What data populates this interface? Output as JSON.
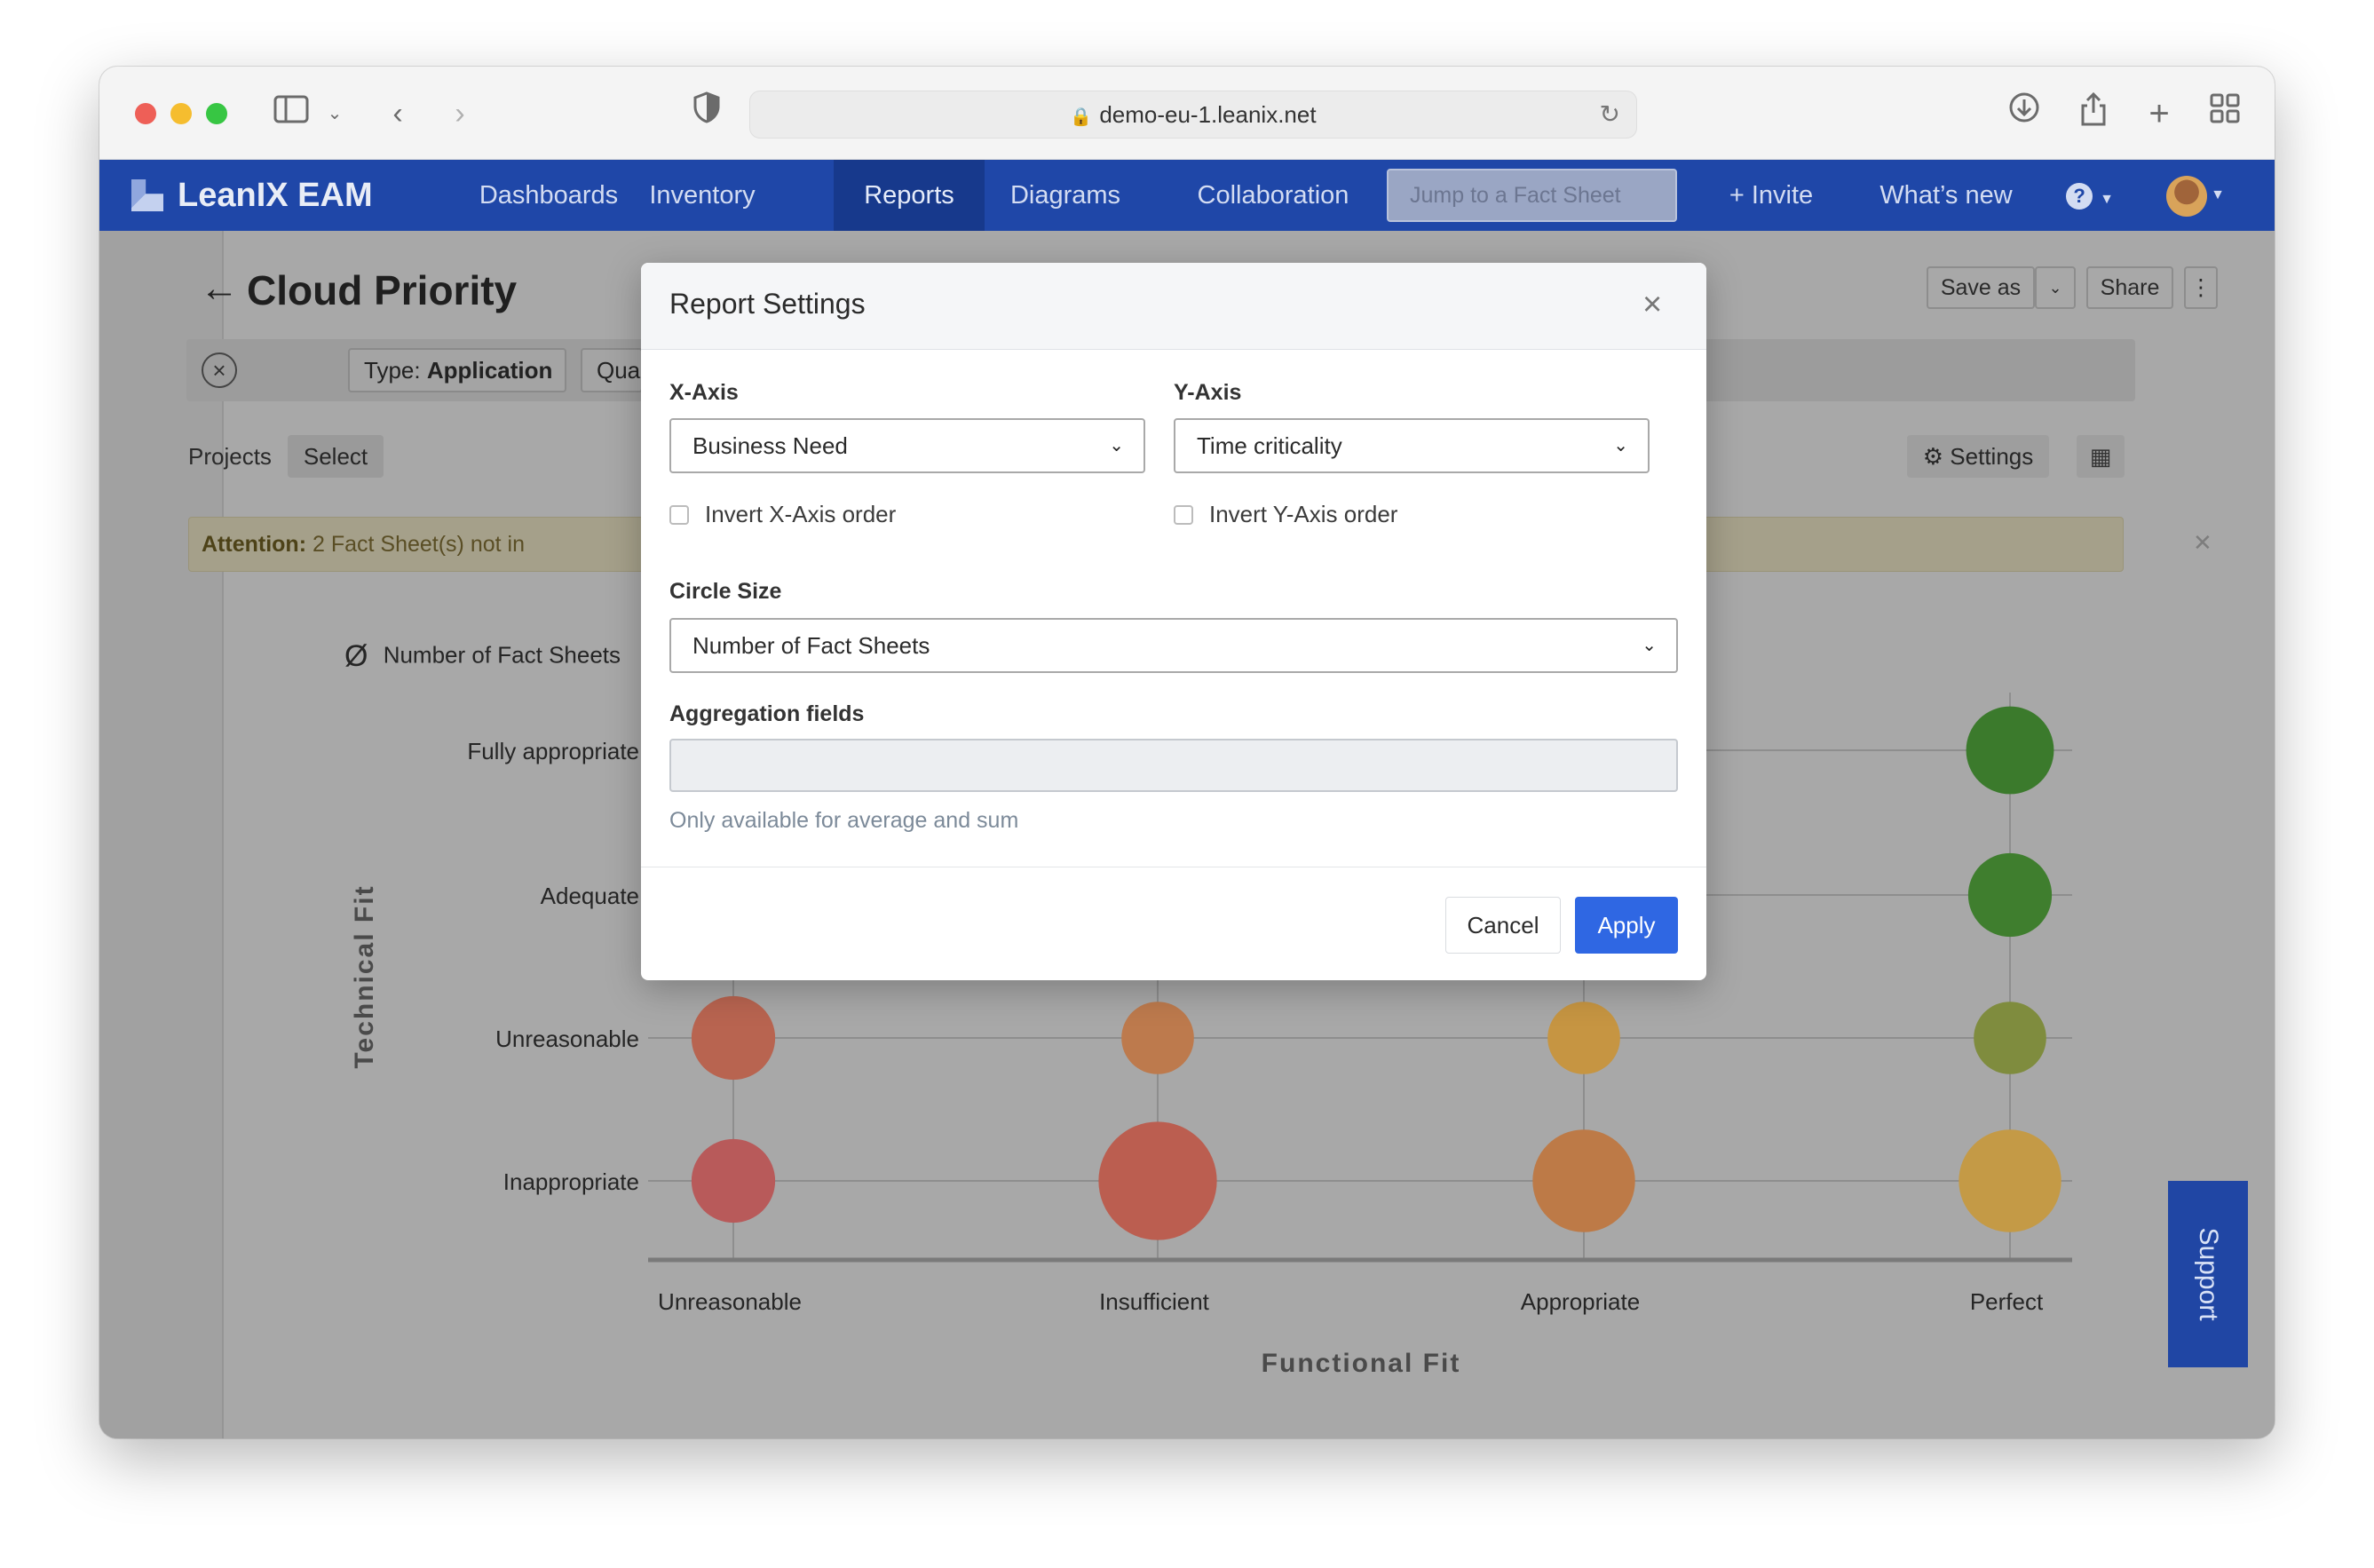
{
  "browser": {
    "url": "demo-eu-1.leanix.net",
    "icons": [
      "sidebar-toggle-icon",
      "chevron-down-icon",
      "back-icon",
      "forward-icon",
      "shield-icon",
      "lock-icon",
      "reload-icon",
      "download-icon",
      "share-icon",
      "new-tab-icon",
      "tab-overview-icon"
    ]
  },
  "nav": {
    "brand": "LeanIX EAM",
    "items": [
      "Dashboards",
      "Inventory",
      "Reports",
      "Diagrams",
      "Collaboration"
    ],
    "active": "Reports",
    "jump_placeholder": "Jump to a Fact Sheet",
    "invite": "+ Invite",
    "whats_new": "What’s new",
    "help": "?"
  },
  "page": {
    "title": "Cloud Priority",
    "filter_type_key": "Type:",
    "filter_type_value": "Application",
    "filter_chip_2": "Qua",
    "save_as": "Save as",
    "share": "Share",
    "more": "⋮",
    "projects_label": "Projects",
    "projects_select": "Select",
    "settings": "Settings",
    "attention_key": "Attention:",
    "attention_text": "2 Fact Sheet(s) not in",
    "legend_symbol": "Ø",
    "legend_label": "Number of Fact Sheets",
    "support": "Support"
  },
  "chart_data": {
    "type": "scatter",
    "xlabel": "Functional Fit",
    "ylabel": "Technical Fit",
    "x_categories": [
      "Unreasonable",
      "Insufficient",
      "Appropriate",
      "Perfect"
    ],
    "y_categories": [
      "Inappropriate",
      "Unreasonable",
      "Adequate",
      "Fully appropriate"
    ],
    "size_label": "Number of Fact Sheets",
    "points": [
      {
        "x": "Unreasonable",
        "y": "Inappropriate",
        "size": 2,
        "color": "#b85a5a"
      },
      {
        "x": "Insufficient",
        "y": "Inappropriate",
        "size": 4,
        "color": "#bb5e50"
      },
      {
        "x": "Appropriate",
        "y": "Inappropriate",
        "size": 3,
        "color": "#bd7a47"
      },
      {
        "x": "Perfect",
        "y": "Inappropriate",
        "size": 3,
        "color": "#c49a46"
      },
      {
        "x": "Unreasonable",
        "y": "Unreasonable",
        "size": 2,
        "color": "#b86450"
      },
      {
        "x": "Insufficient",
        "y": "Unreasonable",
        "size": 1.5,
        "color": "#bd7a4d"
      },
      {
        "x": "Appropriate",
        "y": "Unreasonable",
        "size": 1.5,
        "color": "#c69542"
      },
      {
        "x": "Perfect",
        "y": "Unreasonable",
        "size": 1.5,
        "color": "#7f8c3e"
      },
      {
        "x": "Perfect",
        "y": "Adequate",
        "size": 2,
        "color": "#3f7e2e"
      },
      {
        "x": "Perfect",
        "y": "Fully appropriate",
        "size": 2.2,
        "color": "#3b7a2c"
      }
    ]
  },
  "modal": {
    "title": "Report Settings",
    "x_axis_label": "X-Axis",
    "x_axis_value": "Business Need",
    "y_axis_label": "Y-Axis",
    "y_axis_value": "Time criticality",
    "invert_x": "Invert X-Axis order",
    "invert_y": "Invert Y-Axis order",
    "circle_size_label": "Circle Size",
    "circle_size_value": "Number of Fact Sheets",
    "aggregation_label": "Aggregation fields",
    "aggregation_help": "Only available for average and sum",
    "cancel": "Cancel",
    "apply": "Apply"
  }
}
